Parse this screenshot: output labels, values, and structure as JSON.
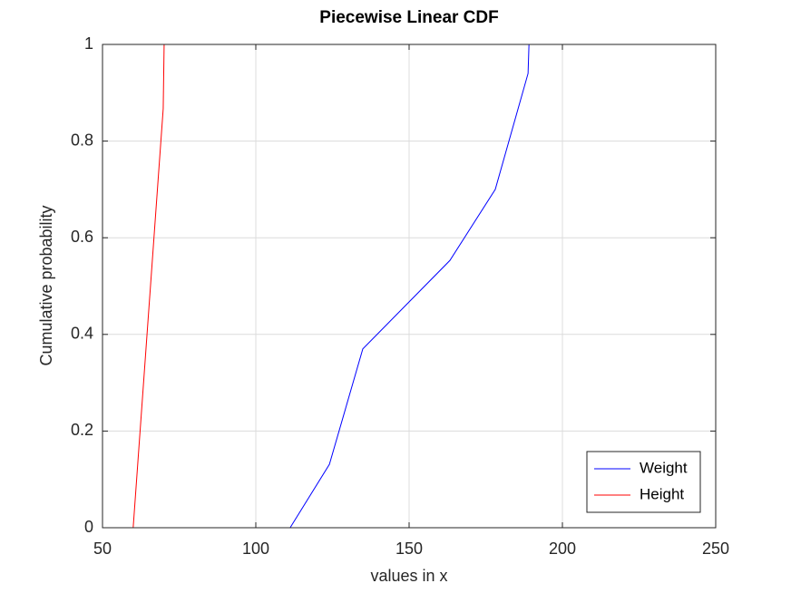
{
  "chart_data": {
    "type": "line",
    "title": "Piecewise Linear CDF",
    "x_label": "values in x",
    "y_label": "Cumulative probability",
    "xlim": [
      50,
      250
    ],
    "ylim": [
      0,
      1
    ],
    "xticks": [
      50,
      100,
      150,
      200,
      250
    ],
    "yticks": [
      0,
      0.2,
      0.4,
      0.6,
      0.8,
      1
    ],
    "grid": true,
    "legend": "lower right",
    "series": [
      {
        "name": "Weight",
        "color": "#0000ff",
        "x": [
          50,
          111.2,
          124,
          134.9,
          163.3,
          178.1,
          188.8,
          189.1,
          250
        ],
        "values": [
          0,
          0,
          0.131,
          0.37,
          0.553,
          0.7,
          0.94,
          1,
          1
        ]
      },
      {
        "name": "Height",
        "color": "#ff0000",
        "x": [
          50,
          60,
          69.8,
          70.1,
          250
        ],
        "values": [
          0,
          0,
          0.867,
          1,
          1
        ]
      }
    ]
  }
}
